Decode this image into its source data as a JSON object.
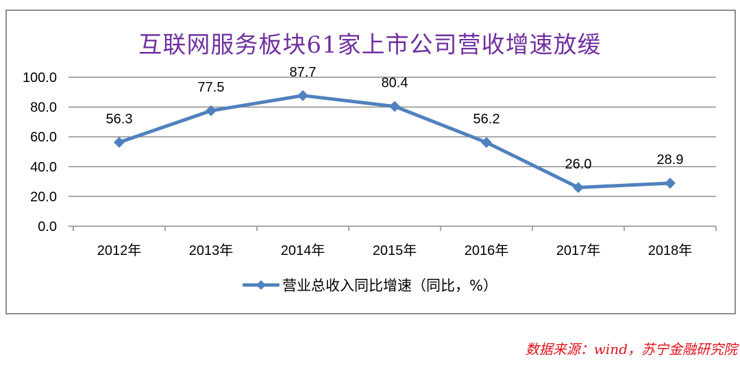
{
  "chart_data": {
    "type": "line",
    "title": "互联网服务板块61家上市公司营收增速放缓",
    "categories": [
      "2012年",
      "2013年",
      "2014年",
      "2015年",
      "2016年",
      "2017年",
      "2018年"
    ],
    "series": [
      {
        "name": "营业总收入同比增速（同比，%）",
        "values": [
          56.3,
          77.5,
          87.7,
          80.4,
          56.2,
          26.0,
          28.9
        ],
        "color": "#4f81bd",
        "marker": "diamond"
      }
    ],
    "data_labels": [
      "56.3",
      "77.5",
      "87.7",
      "80.4",
      "56.2",
      "26.0",
      "28.9"
    ],
    "xlabel": "",
    "ylabel": "",
    "ylim": [
      0,
      100
    ],
    "yticks": [
      "0.0",
      "20.0",
      "40.0",
      "60.0",
      "80.0",
      "100.0"
    ],
    "grid": true,
    "legend_position": "bottom"
  },
  "colors": {
    "title": "#7030a0",
    "series": "#4f81bd",
    "source": "#e0101a",
    "grid": "#8c8c8c"
  },
  "source_note": "数据来源：wind，苏宁金融研究院"
}
